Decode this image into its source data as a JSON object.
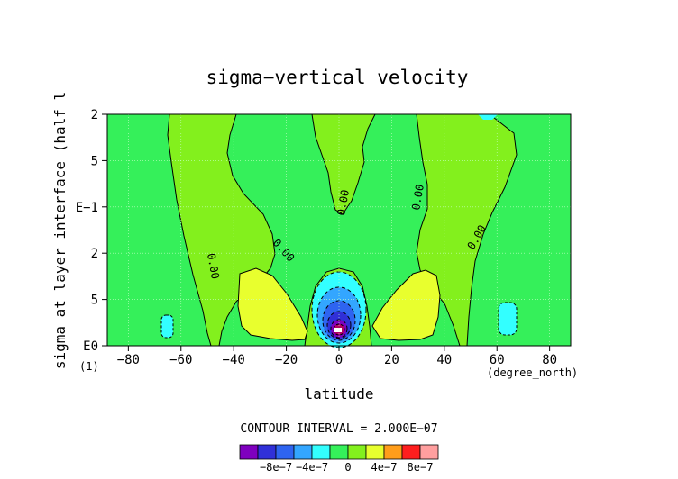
{
  "chart_data": {
    "type": "heatmap",
    "title": "sigma−vertical velocity",
    "xlabel": "latitude",
    "xunits": "(degree_north)",
    "ylabel": "sigma at layer interface (half l",
    "yaxis_note": "(1)",
    "xlim": [
      -88,
      88
    ],
    "x_ticks": [
      -80,
      -60,
      -40,
      -20,
      0,
      20,
      40,
      60,
      80
    ],
    "x_tick_labels": [
      "−80",
      "−60",
      "−40",
      "−20",
      "0",
      "20",
      "40",
      "60",
      "80"
    ],
    "y_scale": "log",
    "y_tick_labels": [
      "2",
      "5",
      "E−1",
      "2",
      "5",
      "E0"
    ],
    "contour_interval_label": "CONTOUR INTERVAL = 2.000E−07",
    "contour_label": "0.00",
    "colorbar": {
      "levels": [
        -1e-06,
        -8e-07,
        -6e-07,
        -4e-07,
        -2e-07,
        0,
        2e-07,
        4e-07,
        6e-07,
        8e-07,
        1e-06
      ],
      "colors": [
        "#7f00bf",
        "#3030d8",
        "#2e64f0",
        "#33a6ff",
        "#33ffff",
        "#35f05a",
        "#83f01d",
        "#e8ff2e",
        "#ff9d1a",
        "#ff1e1e",
        "#ff9f9f"
      ],
      "tick_labels": [
        "−8e−7",
        "−4e−7",
        "0",
        "4e−7",
        "8e−7"
      ],
      "tick_values": [
        -8e-07,
        -4e-07,
        0,
        4e-07,
        8e-07
      ]
    },
    "grid": true,
    "colors": {
      "background": "#35f05a",
      "zero_band": "#83f01d",
      "positive": "#e8ff2e",
      "negative": "#33ffff"
    }
  }
}
